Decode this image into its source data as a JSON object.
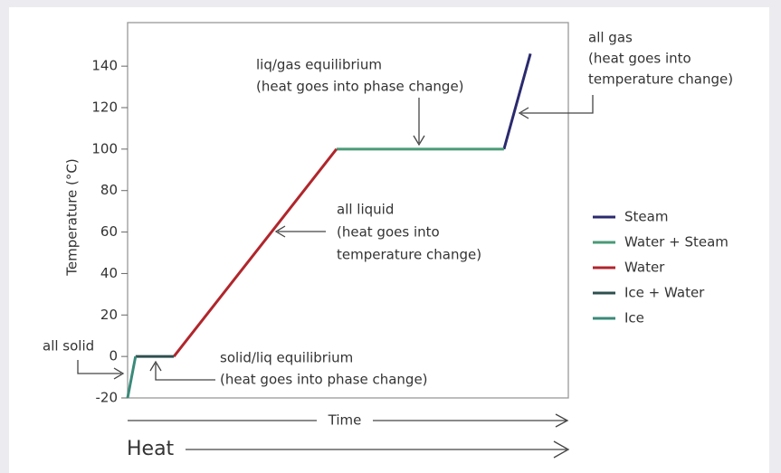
{
  "chart_data": {
    "type": "line",
    "ylabel": "Temperature (°C)",
    "xlabel": "Time",
    "xlabel2": "Heat",
    "xlim": [
      0,
      100
    ],
    "ylim": [
      -20,
      161
    ],
    "yticks": [
      -20,
      0,
      20,
      40,
      60,
      80,
      100,
      120,
      140
    ],
    "series": [
      {
        "name": "Steam",
        "color": "#2b2a6e",
        "x": [
          85.4,
          91.4
        ],
        "values": [
          100,
          146
        ]
      },
      {
        "name": "Water + Steam",
        "color": "#4a9a78",
        "x": [
          47.4,
          85.4
        ],
        "values": [
          100,
          100
        ]
      },
      {
        "name": "Water",
        "color": "#b0262c",
        "x": [
          10.5,
          47.4
        ],
        "values": [
          0,
          100
        ]
      },
      {
        "name": "Ice + Water",
        "color": "#2f4f4f",
        "x": [
          1.8,
          10.5
        ],
        "values": [
          0,
          0
        ]
      },
      {
        "name": "Ice",
        "color": "#3a8a7a",
        "x": [
          0,
          1.8
        ],
        "values": [
          -20,
          0
        ]
      }
    ],
    "annotations": [
      {
        "lines": [
          "all gas",
          "(heat goes into",
          "temperature change)"
        ]
      },
      {
        "lines": [
          "liq/gas equilibrium",
          "(heat goes into phase change)"
        ]
      },
      {
        "lines": [
          "all liquid",
          "(heat goes into",
          "temperature change)"
        ]
      },
      {
        "lines": [
          "solid/liq equilibrium",
          "(heat goes into phase change)"
        ]
      },
      {
        "lines": [
          "all solid"
        ]
      }
    ]
  }
}
